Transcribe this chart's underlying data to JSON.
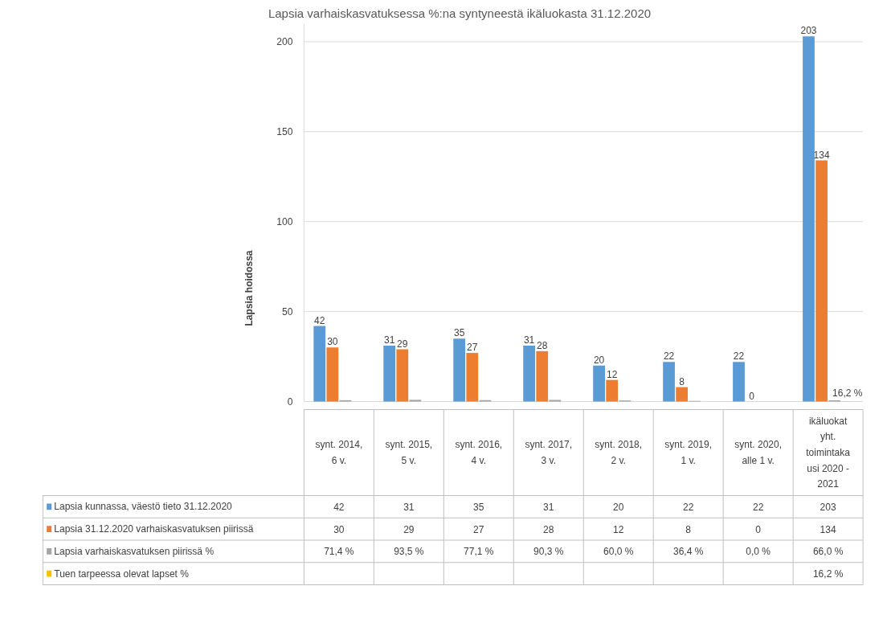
{
  "chart_data": {
    "type": "bar",
    "title": "Lapsia varhaiskasvatuksessa %:na syntyneestä ikäluokasta 31.12.2020",
    "ylabel": "Lapsia hoidossa",
    "categories": [
      "synt. 2014, 6 v.",
      "synt. 2015, 5 v.",
      "synt. 2016, 4 v.",
      "synt. 2017, 3 v.",
      "synt. 2018, 2 v.",
      "synt. 2019, 1 v.",
      "synt. 2020, alle 1 v.",
      "ikäluokat yht. toimintakausi 2020 - 2021"
    ],
    "series": [
      {
        "name": "Lapsia kunnassa, väestö tieto 31.12.2020",
        "color": "#5b9bd5",
        "values": [
          42,
          31,
          35,
          31,
          20,
          22,
          22,
          203
        ],
        "value_labels": [
          "42",
          "31",
          "35",
          "31",
          "20",
          "22",
          "22",
          "203"
        ]
      },
      {
        "name": "Lapsia 31.12.2020 varhaiskasvatuksen piirissä",
        "color": "#ed7d31",
        "values": [
          30,
          29,
          27,
          28,
          12,
          8,
          0,
          134
        ],
        "value_labels": [
          "30",
          "29",
          "27",
          "28",
          "12",
          "8",
          "0",
          "134"
        ]
      },
      {
        "name": "Lapsia varhaiskasvatuksen piirissä %",
        "color": "#a5a5a5",
        "data_labels": false,
        "values": [
          0.714,
          0.935,
          0.771,
          0.903,
          0.6,
          0.364,
          0,
          0.66
        ],
        "value_labels": [
          "71,4 %",
          "93,5 %",
          "77,1 %",
          "90,3 %",
          "60,0 %",
          "36,4 %",
          "0,0 %",
          "66,0 %"
        ]
      },
      {
        "name": "Tuen tarpeessa olevat lapset %",
        "color": "#ffc000",
        "values": [
          null,
          null,
          null,
          null,
          null,
          null,
          null,
          0.162
        ],
        "value_labels": [
          null,
          null,
          null,
          null,
          null,
          null,
          null,
          "16,2 %"
        ]
      }
    ],
    "legend": "bottom left",
    "ylim": [
      0,
      210
    ],
    "yticks": [
      0,
      50,
      100,
      150,
      200
    ],
    "grid": "y",
    "data_labels": true
  }
}
